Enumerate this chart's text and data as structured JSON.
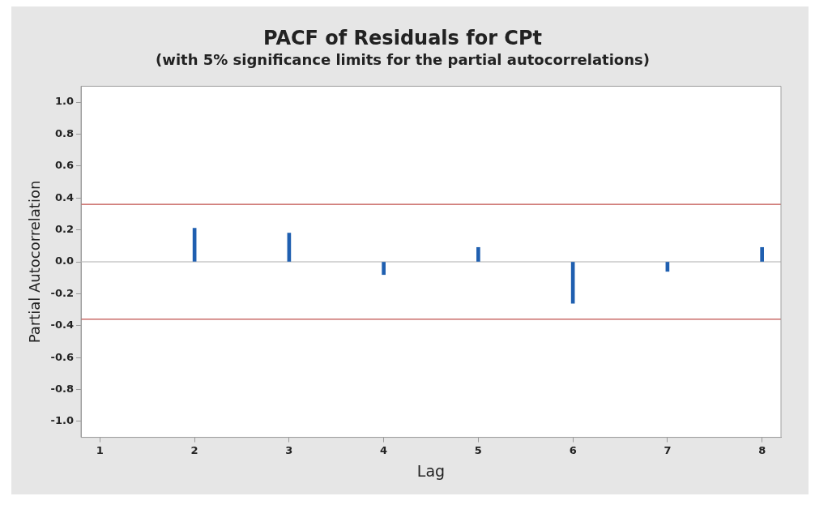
{
  "chart_data": {
    "type": "bar",
    "title": "PACF of Residuals for CPt",
    "subtitle": "(with 5% significance limits for the partial autocorrelations)",
    "xlabel": "Lag",
    "ylabel": "Partial Autocorrelation",
    "x": [
      2,
      3,
      4,
      5,
      6,
      7,
      8
    ],
    "series": [
      {
        "color": "#1f5fb0",
        "values": [
          0.21,
          0.18,
          -0.08,
          0.09,
          -0.26,
          -0.06,
          0.09
        ]
      }
    ],
    "xlim": [
      0.8,
      8.2
    ],
    "xticks": [
      1,
      2,
      3,
      4,
      5,
      6,
      7,
      8
    ],
    "ylim": [
      -1.1,
      1.1
    ],
    "yticks": [
      {
        "value": -1,
        "label": "-1.0"
      },
      {
        "value": -0.8,
        "label": "-0.8"
      },
      {
        "value": -0.6,
        "label": "-0.6"
      },
      {
        "value": -0.4,
        "label": "-0.4"
      },
      {
        "value": -0.2,
        "label": "-0.2"
      },
      {
        "value": 0,
        "label": "0.0"
      },
      {
        "value": 0.2,
        "label": "0.2"
      },
      {
        "value": 0.4,
        "label": "0.4"
      },
      {
        "value": 0.6,
        "label": "0.6"
      },
      {
        "value": 0.8,
        "label": "0.8"
      },
      {
        "value": 1,
        "label": "1.0"
      }
    ],
    "ref_lines": [
      {
        "axis": "y",
        "value": 0,
        "color": "#c8c8c8"
      },
      {
        "axis": "y",
        "value": 0.36,
        "color": "#c0504d"
      },
      {
        "axis": "y",
        "value": -0.36,
        "color": "#c0504d"
      }
    ],
    "grid": false,
    "legend": false
  }
}
